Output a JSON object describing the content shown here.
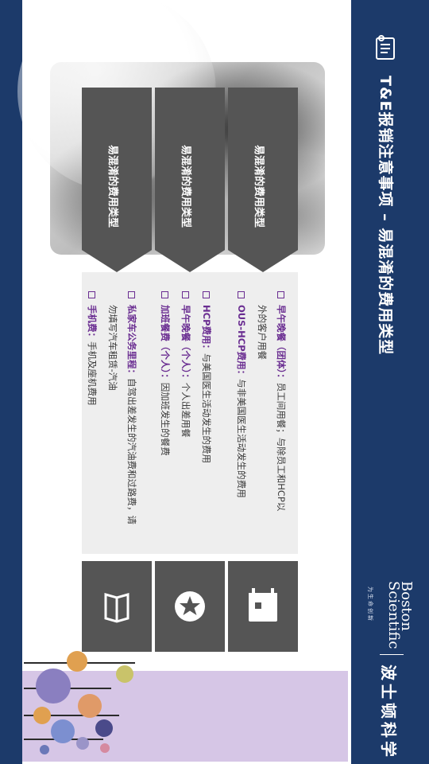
{
  "header": {
    "title": "T&E报销注意事项 – 易混淆的费用类型",
    "brand_cn": "波士顿科学",
    "logo_line1": "Boston",
    "logo_line2": "Scientific",
    "logo_tagline": "为生命创新"
  },
  "categories": [
    {
      "label": "易混淆的费用类型",
      "icon": "calendar-icon"
    },
    {
      "label": "易混淆的费用类型",
      "icon": "star-icon"
    },
    {
      "label": "易混淆的费用类型",
      "icon": "book-icon"
    }
  ],
  "bullets": [
    {
      "term": "早午晚餐（团体）：",
      "text": "员工间用餐；与除员工和HCP以",
      "cont": "外的客户用餐"
    },
    {
      "term": "OUS-HCP费用：",
      "text": "与非美国医生活动发生的费用",
      "cont": ""
    },
    {
      "term": "HCP费用：",
      "text": "与美国医生活动发生的费用",
      "cont": ""
    },
    {
      "term": "早午晚餐（个人）：",
      "text": "个人出差用餐",
      "cont": ""
    },
    {
      "term": "加班餐费（个人）：",
      "text": "因加班发生的餐费",
      "cont": ""
    },
    {
      "term": "私家车公务里程：",
      "text": "自驾出差发生的汽油费和过路费，请",
      "cont": "勿填写汽车租赁-汽油"
    },
    {
      "term": "手机费：",
      "text": "手机及座机费用",
      "cont": ""
    }
  ],
  "colors": {
    "navy": "#1c3a6a",
    "purple": "#6a2d91",
    "panel": "#555555",
    "lilac": "#d6c6e6"
  }
}
